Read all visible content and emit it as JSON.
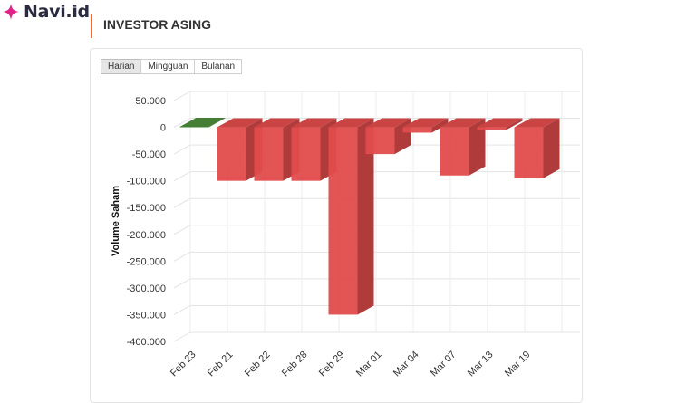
{
  "brand": {
    "name": "Navi.id",
    "accent_color": "#e0218a"
  },
  "section": {
    "title": "INVESTOR ASING",
    "accent_color": "#f26b2d"
  },
  "tabs": [
    {
      "label": "Harian",
      "active": true
    },
    {
      "label": "Mingguan",
      "active": false
    },
    {
      "label": "Bulanan",
      "active": false
    }
  ],
  "chart_data": {
    "type": "bar",
    "style": "3d-column",
    "ylabel": "Volume Saham",
    "xlabel": "",
    "ylim": [
      -400000,
      50000
    ],
    "yticks": [
      "50.000",
      "0",
      "-50.000",
      "-100.000",
      "-150.000",
      "-200.000",
      "-250.000",
      "-300.000",
      "-350.000",
      "-400.000"
    ],
    "ytick_values": [
      50000,
      0,
      -50000,
      -100000,
      -150000,
      -200000,
      -250000,
      -300000,
      -350000,
      -400000
    ],
    "categories": [
      "Feb 23",
      "Feb 21",
      "Feb 22",
      "Feb 28",
      "Feb 29",
      "Mar 01",
      "Mar 04",
      "Mar 07",
      "Mar 13",
      "Mar 19"
    ],
    "values": [
      1000,
      -100000,
      -100000,
      -100000,
      -350000,
      -50000,
      -10000,
      -90000,
      -5000,
      -95000
    ],
    "grid": true,
    "colors": {
      "positive": "#4a8c3a",
      "negative": "#e24b4b"
    }
  }
}
